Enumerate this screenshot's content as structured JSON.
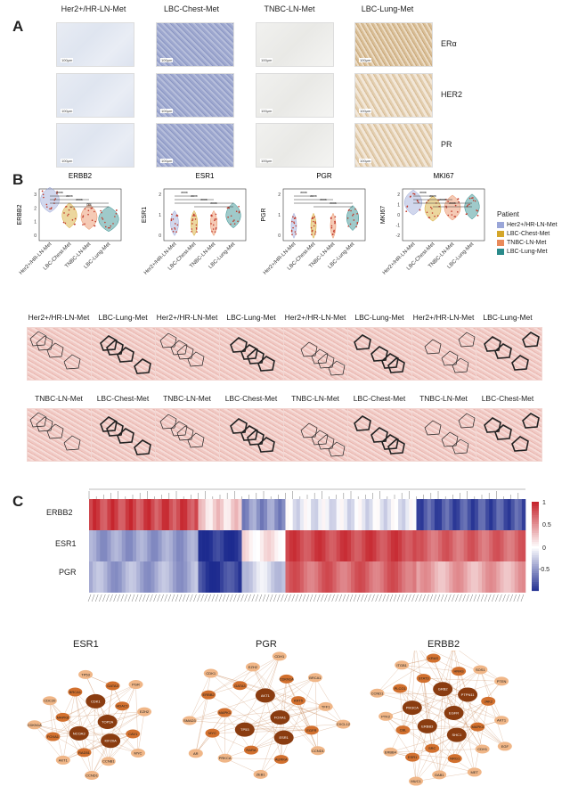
{
  "panels": {
    "a": "A",
    "b": "B",
    "c": "C"
  },
  "ihc": {
    "columns": [
      "Her2+/HR-LN-Met",
      "LBC-Chest-Met",
      "TNBC-LN-Met",
      "LBC-Lung-Met"
    ],
    "markers": [
      "ERα",
      "HER2",
      "PR"
    ]
  },
  "violins": [
    {
      "title": "ERBB2",
      "ylabel": "ERBB2",
      "yticks": [
        "3",
        "2",
        "1",
        "0"
      ]
    },
    {
      "title": "ESR1",
      "ylabel": "ESR1",
      "yticks": [
        "2",
        "1",
        "0"
      ]
    },
    {
      "title": "PGR",
      "ylabel": "PGR",
      "yticks": [
        "2",
        "1",
        "0"
      ]
    },
    {
      "title": "MKI67",
      "ylabel": "MKI67",
      "yticks": [
        "2",
        "1",
        "0",
        "-1",
        "-2"
      ]
    }
  ],
  "violin_groups": [
    "Her2+/HR-LN-Met",
    "LBC-Chest-Met",
    "TNBC-LN-Met",
    "LBC-Lung-Met"
  ],
  "violin_colors": [
    "#9aa6d8",
    "#d4a62a",
    "#e98a5a",
    "#2a8a8a"
  ],
  "sig_marks": [
    "****",
    "ns"
  ],
  "legend": {
    "title": "Patient",
    "items": [
      "Her2+/HR-LN-Met",
      "LBC-Chest-Met",
      "TNBC-LN-Met",
      "LBC-Lung-Met"
    ]
  },
  "spatial": {
    "row1": [
      "Her2+/HR-LN-Met",
      "LBC-Lung-Met",
      "Her2+/HR-LN-Met",
      "LBC-Lung-Met",
      "Her2+/HR-LN-Met",
      "LBC-Lung-Met",
      "Her2+/HR-LN-Met",
      "LBC-Lung-Met"
    ],
    "row2": [
      "TNBC-LN-Met",
      "LBC-Chest-Met",
      "TNBC-LN-Met",
      "LBC-Chest-Met",
      "TNBC-LN-Met",
      "LBC-Chest-Met",
      "TNBC-LN-Met",
      "LBC-Chest-Met"
    ]
  },
  "heatmap": {
    "rows": [
      "ERBB2",
      "ESR1",
      "PGR"
    ],
    "colorbar": [
      "1",
      "0.5",
      "0",
      "-0.5"
    ],
    "color_high": "#c6262e",
    "color_low": "#1d2b8f"
  },
  "networks": [
    {
      "title": "ESR1",
      "labels": [
        "TOP2A",
        "NCOA3",
        "CDK1",
        "KIF20A",
        "MAPK8",
        "HDAC1",
        "RAD51",
        "BRCA1",
        "CAV1",
        "FOXA1",
        "GATA3",
        "CCNB1",
        "CDC20",
        "EZH2",
        "AKT1",
        "TP53",
        "MYC",
        "CDKN1A",
        "PGR",
        "CCND1"
      ]
    },
    {
      "title": "PGR",
      "labels": [
        "FOXA1",
        "TP53",
        "AKT1",
        "ESR1",
        "MAPK1",
        "KRT5",
        "RARA",
        "GATA3",
        "EGFR",
        "MYC",
        "CDKN1A",
        "AURKA",
        "ERBB2",
        "TFF1",
        "PRKCA",
        "EZH2",
        "CCND1",
        "SMAD3",
        "BRCA1",
        "ZEB1",
        "CDK1",
        "CXCL12",
        "AR",
        "CDH1"
      ]
    },
    {
      "title": "ERBB2",
      "labels": [
        "EGFR",
        "ERBB3",
        "GRB2",
        "SHC1",
        "PIK3CA",
        "PTPN11",
        "SRC",
        "STAT3",
        "MAPK3",
        "CBL",
        "HRAS",
        "NRG1",
        "PLCG1",
        "JAK2",
        "ESR1",
        "KRAS",
        "CDH1",
        "PTK2",
        "SOS1",
        "GAB1",
        "ITGB1",
        "AKT1",
        "ERBB4",
        "IGF1R",
        "MET",
        "CCND1",
        "PTEN",
        "MUC1",
        "BRAF",
        "EGF"
      ]
    }
  ]
}
